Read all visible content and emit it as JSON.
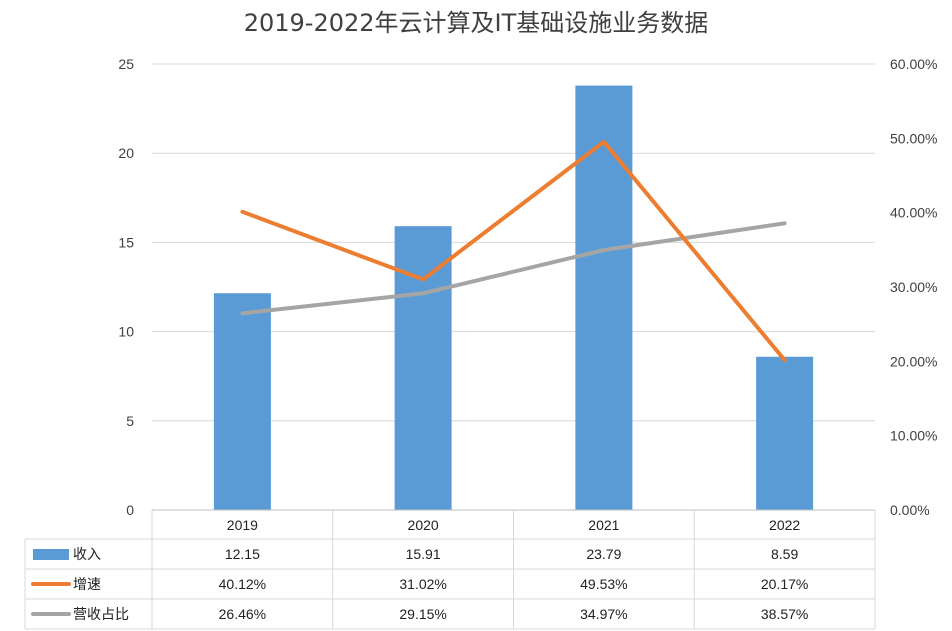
{
  "chart_data": {
    "type": "bar",
    "title": "2019-2022年云计算及IT基础设施业务数据",
    "categories": [
      "2019",
      "2020",
      "2021",
      "2022"
    ],
    "ylim": [
      0,
      25
    ],
    "y_ticks": [
      "0",
      "5",
      "10",
      "15",
      "20",
      "25"
    ],
    "y2lim": [
      0,
      0.6
    ],
    "y2_ticks": [
      "0.00%",
      "10.00%",
      "20.00%",
      "30.00%",
      "40.00%",
      "50.00%",
      "60.00%"
    ],
    "grid": true,
    "legend": "data-table",
    "series": [
      {
        "name": "收入",
        "type": "bar",
        "axis": "left",
        "color": "#5B9BD5",
        "values": [
          12.15,
          15.91,
          23.79,
          8.59
        ],
        "labels": [
          "12.15",
          "15.91",
          "23.79",
          "8.59"
        ]
      },
      {
        "name": "增速",
        "type": "line",
        "axis": "right",
        "color": "#ED7D31",
        "values": [
          0.4012,
          0.3102,
          0.4953,
          0.2017
        ],
        "labels": [
          "40.12%",
          "31.02%",
          "49.53%",
          "20.17%"
        ]
      },
      {
        "name": "营收占比",
        "type": "line",
        "axis": "right",
        "color": "#A5A5A5",
        "values": [
          0.2646,
          0.2915,
          0.3497,
          0.3857
        ],
        "labels": [
          "26.46%",
          "29.15%",
          "34.97%",
          "38.57%"
        ]
      }
    ]
  }
}
